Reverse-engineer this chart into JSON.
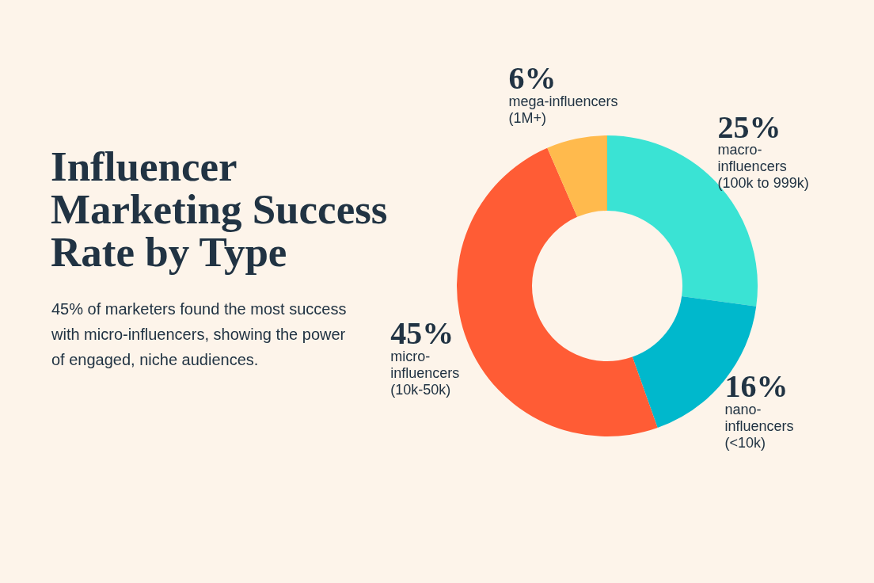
{
  "chart_data": {
    "type": "donut",
    "title": "Influencer Marketing Success Rate by Type",
    "subtitle": "45% of marketers found the most success with micro-influencers, showing the power of engaged, niche audiences.",
    "categories": [
      "macro-influencers (100k to 999k)",
      "nano-influencers (<10k)",
      "micro-influencers (10k-50k)",
      "mega-influencers (1M+)"
    ],
    "values": [
      25,
      16,
      45,
      6
    ],
    "colors": [
      "#3ae3d4",
      "#00b8cc",
      "#ff5c35",
      "#ffba4d"
    ],
    "value_labels": [
      "25%",
      "16%",
      "45%",
      "6%"
    ]
  }
}
